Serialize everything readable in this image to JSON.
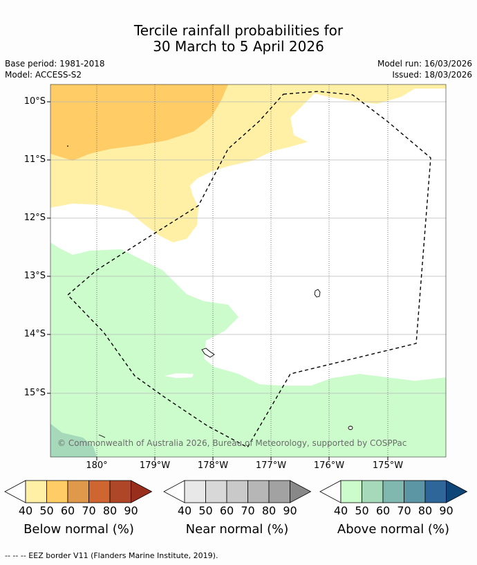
{
  "title_line1": "Tercile rainfall probabilities for",
  "title_line2": "30 March to 5 April 2026",
  "base_period": "Base period: 1981-2018",
  "model": "Model: ACCESS-S2",
  "model_run": "Model run: 16/03/2026",
  "issued": "Issued: 18/03/2026",
  "lat_labels": [
    "10°S",
    "11°S",
    "12°S",
    "13°S",
    "14°S",
    "15°S"
  ],
  "lon_labels": [
    "180°",
    "179°W",
    "178°W",
    "177°W",
    "176°W",
    "175°W"
  ],
  "copyright": "© Commonwealth of Australia 2026, Bureau of Meteorology, supported by COSPPac",
  "colorbars": {
    "below": {
      "title": "Below normal (%)",
      "colors": [
        "#fff0a6",
        "#ffcc66",
        "#e0984a",
        "#cf6632",
        "#ad4728",
        "#9a2e1d"
      ]
    },
    "near": {
      "title": "Near normal (%)",
      "colors": [
        "#e8e8e8",
        "#d8d8d8",
        "#c9c9c9",
        "#b6b6b6",
        "#a2a2a2",
        "#888888"
      ]
    },
    "above": {
      "title": "Above normal (%)",
      "colors": [
        "#ccfccc",
        "#a6d9b9",
        "#80b8b0",
        "#5c95a4",
        "#2f6699",
        "#0f4678"
      ]
    }
  },
  "tick_labels": [
    "40",
    "50",
    "60",
    "70",
    "80",
    "90"
  ],
  "footer": "--  --  -- EEZ border V11 (Flanders Marine Institute, 2019)."
}
